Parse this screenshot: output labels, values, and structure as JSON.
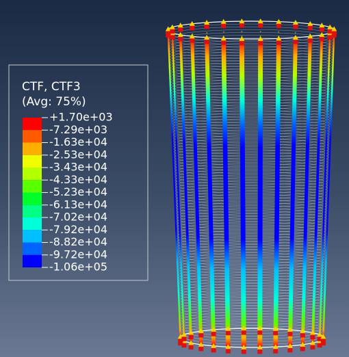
{
  "legend": {
    "title": "CTF, CTF3",
    "subtitle": "(Avg: 75%)",
    "labels": [
      "+1.70e+03",
      "-7.29e+03",
      "-1.63e+04",
      "-2.53e+04",
      "-3.43e+04",
      "-4.33e+04",
      "-5.23e+04",
      "-6.13e+04",
      "-7.02e+04",
      "-7.92e+04",
      "-8.82e+04",
      "-9.72e+04",
      "-1.06e+05"
    ],
    "colors": [
      "#ff0000",
      "#ff5a00",
      "#ffaf00",
      "#f0ff00",
      "#b4ff00",
      "#5aff00",
      "#00ff2a",
      "#00ff84",
      "#00ffd8",
      "#00c0ff",
      "#0064ff",
      "#0000ff"
    ]
  }
}
